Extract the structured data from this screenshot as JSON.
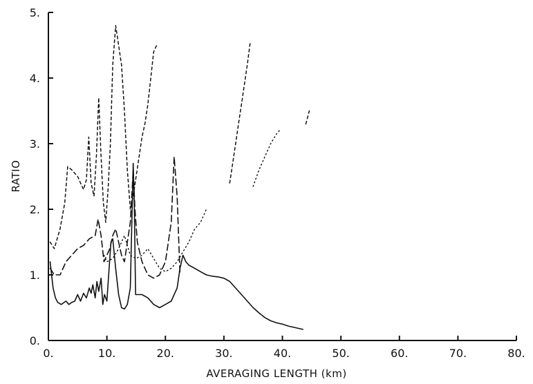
{
  "chart_data": {
    "type": "line",
    "xlabel": "AVERAGING LENGTH (km)",
    "ylabel": "RATIO",
    "xlim": [
      0,
      80
    ],
    "ylim": [
      0,
      5
    ],
    "x_ticks": [
      "0.",
      "10.",
      "20.",
      "30.",
      "40.",
      "50.",
      "60.",
      "70.",
      "80."
    ],
    "y_ticks": [
      "0.",
      "1.",
      "2.",
      "3.",
      "4.",
      "5."
    ],
    "grid": false,
    "series": [
      {
        "style": "solid",
        "segments": [
          {
            "x": [
              0.3,
              0.8,
              1.2,
              1.6,
              2.2,
              3.0,
              3.5,
              4.0,
              4.5,
              5.0,
              5.5,
              6.0,
              6.5,
              7.0,
              7.3,
              7.6,
              8.0,
              8.3,
              8.6,
              9.0,
              9.3,
              9.6,
              10.0,
              10.3,
              10.7,
              11.0,
              11.5,
              12.0,
              12.5,
              13.0,
              13.5,
              14.0,
              14.5,
              14.7,
              14.9,
              15.2,
              16.0,
              17.0,
              18.0,
              19.0,
              20.0,
              21.0,
              22.0,
              22.5,
              23.0,
              23.5,
              24.0,
              25.0,
              26.0,
              27.0,
              28.0,
              29.0,
              30.0,
              31.0,
              32.0,
              33.0,
              34.0,
              35.0,
              36.0,
              37.0,
              38.0,
              39.0,
              40.0,
              41.0,
              42.0,
              43.5
            ],
            "y": [
              1.2,
              0.8,
              0.65,
              0.58,
              0.55,
              0.6,
              0.55,
              0.58,
              0.6,
              0.7,
              0.6,
              0.72,
              0.65,
              0.8,
              0.72,
              0.85,
              0.65,
              0.9,
              0.75,
              0.95,
              0.55,
              0.7,
              0.6,
              1.0,
              1.5,
              1.55,
              1.1,
              0.7,
              0.5,
              0.48,
              0.55,
              0.8,
              2.7,
              2.0,
              0.7,
              0.7,
              0.7,
              0.65,
              0.55,
              0.5,
              0.55,
              0.6,
              0.8,
              1.1,
              1.3,
              1.2,
              1.15,
              1.1,
              1.05,
              1.0,
              0.98,
              0.97,
              0.95,
              0.9,
              0.8,
              0.7,
              0.6,
              0.5,
              0.42,
              0.35,
              0.3,
              0.27,
              0.25,
              0.22,
              0.2,
              0.17
            ]
          }
        ]
      },
      {
        "style": "long-dash",
        "segments": [
          {
            "x": [
              0.3,
              1.0,
              2.0,
              3.0,
              4.0,
              5.0,
              6.0,
              7.0,
              8.0,
              8.5,
              9.0,
              9.5,
              10.0,
              10.5,
              11.0,
              11.5,
              12.0,
              12.5,
              13.0,
              13.5,
              14.0,
              14.5,
              14.8,
              15.2,
              16.0,
              17.0,
              18.0,
              19.0,
              20.0,
              21.0,
              21.5,
              22.0,
              22.5
            ],
            "y": [
              1.1,
              1.0,
              1.0,
              1.2,
              1.3,
              1.4,
              1.45,
              1.55,
              1.6,
              1.85,
              1.6,
              1.2,
              1.3,
              1.4,
              1.6,
              1.7,
              1.5,
              1.3,
              1.2,
              1.5,
              1.8,
              2.6,
              2.0,
              1.5,
              1.2,
              1.0,
              0.95,
              1.0,
              1.2,
              1.8,
              2.8,
              2.2,
              1.0
            ]
          }
        ]
      },
      {
        "style": "short-dash",
        "segments": [
          {
            "x": [
              0.3,
              1.0,
              2.0,
              2.8,
              3.3,
              4.0,
              5.0,
              5.5,
              6.0,
              6.5,
              6.9,
              7.3,
              7.8,
              8.2,
              8.6,
              9.0,
              9.4,
              9.8,
              10.2,
              10.6,
              11.0,
              11.5,
              12.0,
              12.5,
              13.0,
              13.5,
              14.0,
              14.5,
              15.0,
              15.5,
              16.0,
              16.5,
              17.0,
              17.5,
              18.0,
              18.5
            ],
            "y": [
              1.5,
              1.4,
              1.7,
              2.1,
              2.65,
              2.6,
              2.5,
              2.4,
              2.3,
              2.45,
              3.1,
              2.4,
              2.2,
              2.8,
              3.7,
              2.8,
              2.1,
              1.8,
              2.3,
              3.0,
              4.2,
              4.8,
              4.5,
              4.2,
              3.5,
              2.6,
              2.0,
              2.2,
              2.5,
              2.8,
              3.1,
              3.3,
              3.6,
              4.0,
              4.4,
              4.5
            ]
          },
          {
            "x": [
              31.0,
              31.5,
              32.0,
              32.5,
              33.0,
              33.5,
              34.0,
              34.5
            ],
            "y": [
              2.4,
              2.7,
              3.0,
              3.3,
              3.6,
              3.9,
              4.2,
              4.55
            ]
          },
          {
            "x": [
              44.0,
              44.3,
              44.6
            ],
            "y": [
              3.3,
              3.4,
              3.5
            ]
          }
        ]
      },
      {
        "style": "dotted",
        "segments": [
          {
            "x": [
              9.5,
              10.0,
              11.0,
              12.0,
              13.0,
              14.0,
              15.0,
              16.0,
              17.0,
              18.0,
              19.0,
              20.0,
              21.0,
              22.0,
              23.0,
              24.0,
              25.0,
              26.0,
              27.0
            ],
            "y": [
              1.3,
              1.2,
              1.25,
              1.4,
              1.6,
              1.3,
              1.25,
              1.3,
              1.4,
              1.25,
              1.1,
              1.05,
              1.1,
              1.2,
              1.35,
              1.5,
              1.7,
              1.8,
              2.0
            ]
          },
          {
            "x": [
              35.0,
              36.0,
              37.0,
              38.0,
              39.0,
              39.5
            ],
            "y": [
              2.35,
              2.6,
              2.8,
              3.0,
              3.15,
              3.2
            ]
          }
        ]
      }
    ]
  }
}
